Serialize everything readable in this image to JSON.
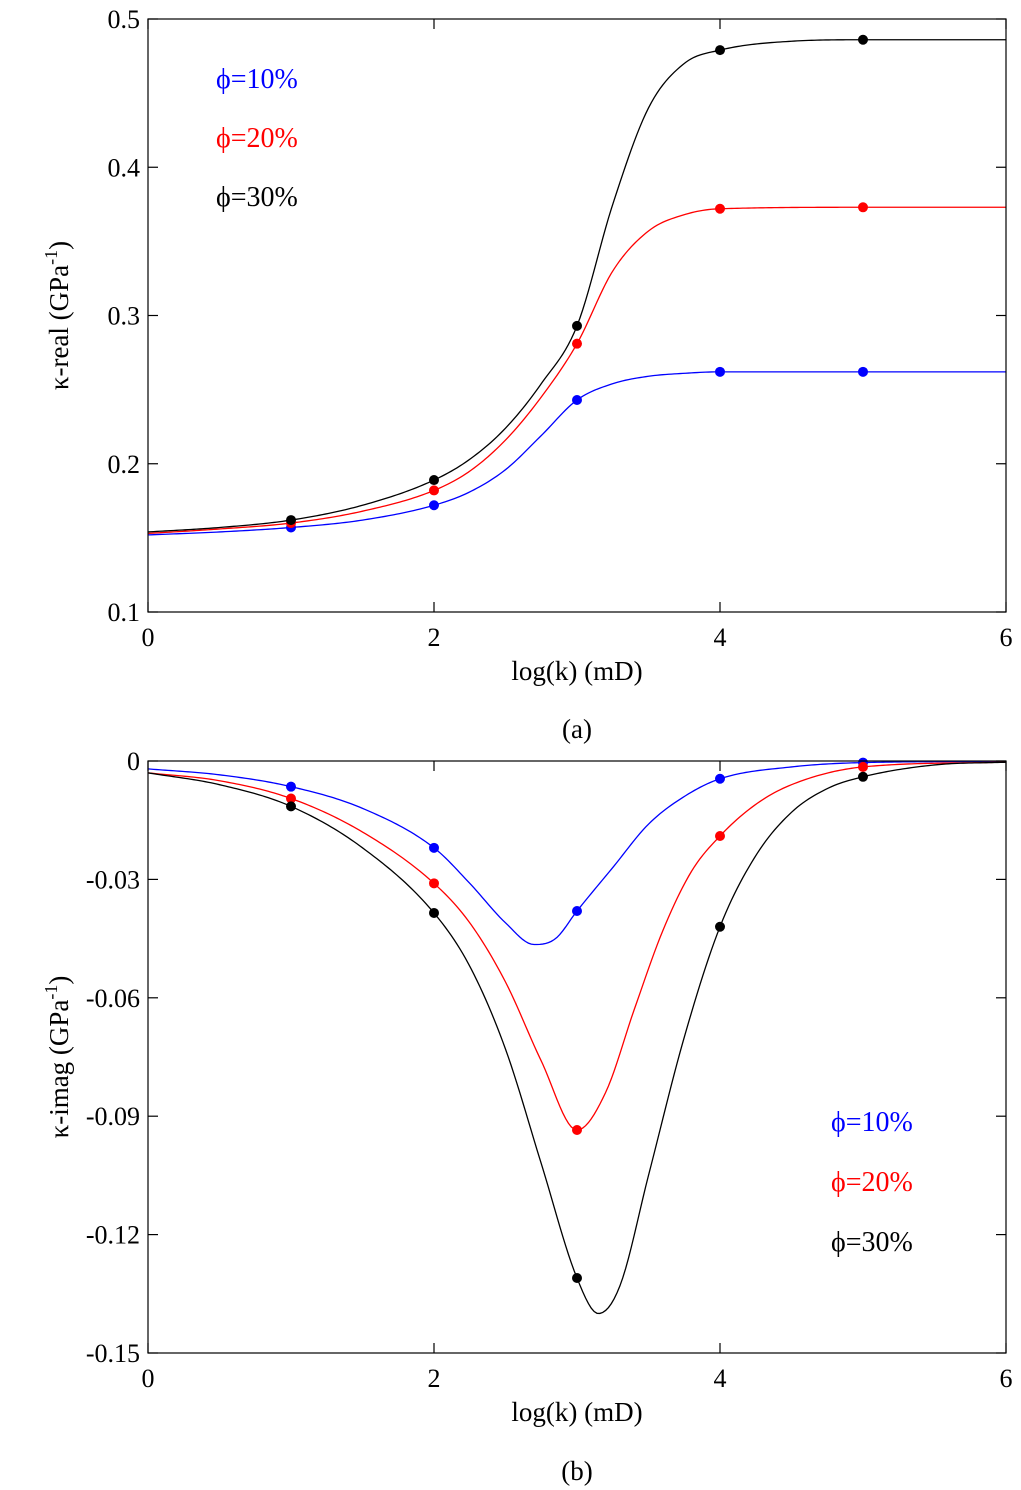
{
  "chart_data": [
    {
      "type": "line",
      "panel": "a",
      "caption": "(a)",
      "xlabel": "log(k) (mD)",
      "ylabel": "κ-real (GPa",
      "ylabel_sup": "-1",
      "ylabel_close": ")",
      "xlim": [
        0,
        6
      ],
      "ylim": [
        0.1,
        0.5
      ],
      "xticks": [
        0,
        2,
        4,
        6
      ],
      "xtick_labels": [
        "0",
        "2",
        "4",
        "6"
      ],
      "yticks": [
        0.1,
        0.2,
        0.3,
        0.4,
        0.5
      ],
      "ytick_labels": [
        "0.1",
        "0.2",
        "0.3",
        "0.4",
        "0.5"
      ],
      "grid": false,
      "legend_position": "top-left",
      "series": [
        {
          "name": "ϕ=10%",
          "color": "#0000ff",
          "line": {
            "x": [
              0,
              0.5,
              1,
              1.5,
              2,
              2.25,
              2.5,
              2.75,
              3,
              3.25,
              3.5,
              3.75,
              4,
              5,
              6
            ],
            "y": [
              0.152,
              0.154,
              0.157,
              0.162,
              0.172,
              0.181,
              0.196,
              0.219,
              0.243,
              0.254,
              0.259,
              0.261,
              0.262,
              0.262,
              0.262
            ]
          },
          "markers": {
            "x": [
              1,
              2,
              3,
              4,
              5
            ],
            "y": [
              0.157,
              0.172,
              0.243,
              0.262,
              0.262
            ]
          }
        },
        {
          "name": "ϕ=20%",
          "color": "#ff0000",
          "line": {
            "x": [
              0,
              0.5,
              1,
              1.5,
              2,
              2.25,
              2.5,
              2.75,
              3,
              3.25,
              3.5,
              3.75,
              4,
              5,
              6
            ],
            "y": [
              0.153,
              0.156,
              0.16,
              0.168,
              0.182,
              0.195,
              0.216,
              0.245,
              0.281,
              0.33,
              0.357,
              0.368,
              0.372,
              0.373,
              0.373
            ]
          },
          "markers": {
            "x": [
              1,
              2,
              3,
              4,
              5
            ],
            "y": [
              0.16,
              0.182,
              0.281,
              0.372,
              0.373
            ]
          }
        },
        {
          "name": "ϕ=30%",
          "color": "#000000",
          "line": {
            "x": [
              0,
              0.5,
              1,
              1.5,
              2,
              2.25,
              2.5,
              2.75,
              3,
              3.25,
              3.5,
              3.75,
              4,
              4.5,
              5,
              6
            ],
            "y": [
              0.154,
              0.157,
              0.162,
              0.172,
              0.189,
              0.203,
              0.224,
              0.254,
              0.293,
              0.375,
              0.44,
              0.47,
              0.479,
              0.485,
              0.486,
              0.486
            ]
          },
          "markers": {
            "x": [
              1,
              2,
              3,
              4,
              5
            ],
            "y": [
              0.162,
              0.189,
              0.293,
              0.479,
              0.486
            ]
          }
        }
      ]
    },
    {
      "type": "line",
      "panel": "b",
      "caption": "(b)",
      "xlabel": "log(k) (mD)",
      "ylabel": "κ-imag (GPa",
      "ylabel_sup": "-1",
      "ylabel_close": ")",
      "xlim": [
        0,
        6
      ],
      "ylim": [
        -0.15,
        0
      ],
      "xticks": [
        0,
        2,
        4,
        6
      ],
      "xtick_labels": [
        "0",
        "2",
        "4",
        "6"
      ],
      "yticks": [
        -0.15,
        -0.12,
        -0.09,
        -0.06,
        -0.03,
        0
      ],
      "ytick_labels": [
        "-0.15",
        "-0.12",
        "-0.09",
        "-0.06",
        "-0.03",
        "0"
      ],
      "grid": false,
      "legend_position": "bottom-right",
      "series": [
        {
          "name": "ϕ=10%",
          "color": "#0000ff",
          "line": {
            "x": [
              0,
              0.5,
              1,
              1.5,
              2,
              2.25,
              2.5,
              2.7,
              2.85,
              3,
              3.25,
              3.5,
              3.75,
              4,
              4.5,
              5,
              6
            ],
            "y": [
              -0.002,
              -0.0035,
              -0.0065,
              -0.012,
              -0.022,
              -0.031,
              -0.041,
              -0.0465,
              -0.045,
              -0.038,
              -0.027,
              -0.016,
              -0.009,
              -0.0045,
              -0.0015,
              -0.0004,
              -0.0001
            ]
          },
          "markers": {
            "x": [
              1,
              2,
              3,
              4,
              5
            ],
            "y": [
              -0.0065,
              -0.022,
              -0.038,
              -0.0045,
              -0.0004
            ]
          }
        },
        {
          "name": "ϕ=20%",
          "color": "#ff0000",
          "line": {
            "x": [
              0,
              0.5,
              1,
              1.5,
              2,
              2.25,
              2.5,
              2.75,
              3,
              3.2,
              3.4,
              3.6,
              3.8,
              4,
              4.25,
              4.5,
              5,
              6
            ],
            "y": [
              -0.003,
              -0.005,
              -0.0095,
              -0.018,
              -0.031,
              -0.041,
              -0.056,
              -0.076,
              -0.0935,
              -0.084,
              -0.063,
              -0.043,
              -0.028,
              -0.019,
              -0.011,
              -0.006,
              -0.0015,
              -0.0003
            ]
          },
          "markers": {
            "x": [
              1,
              2,
              3,
              4,
              5
            ],
            "y": [
              -0.0095,
              -0.031,
              -0.0935,
              -0.019,
              -0.0015
            ]
          }
        },
        {
          "name": "ϕ=30%",
          "color": "#000000",
          "line": {
            "x": [
              0,
              0.5,
              1,
              1.5,
              2,
              2.25,
              2.5,
              2.75,
              3,
              3.15,
              3.3,
              3.5,
              3.75,
              4,
              4.25,
              4.5,
              4.75,
              5,
              5.5,
              6
            ],
            "y": [
              -0.003,
              -0.006,
              -0.0115,
              -0.022,
              -0.0385,
              -0.052,
              -0.073,
              -0.102,
              -0.131,
              -0.14,
              -0.133,
              -0.105,
              -0.07,
              -0.042,
              -0.024,
              -0.013,
              -0.007,
              -0.004,
              -0.001,
              -0.0003
            ]
          },
          "markers": {
            "x": [
              1,
              2,
              3,
              4,
              5
            ],
            "y": [
              -0.0115,
              -0.0385,
              -0.131,
              -0.042,
              -0.004
            ]
          }
        }
      ]
    }
  ]
}
